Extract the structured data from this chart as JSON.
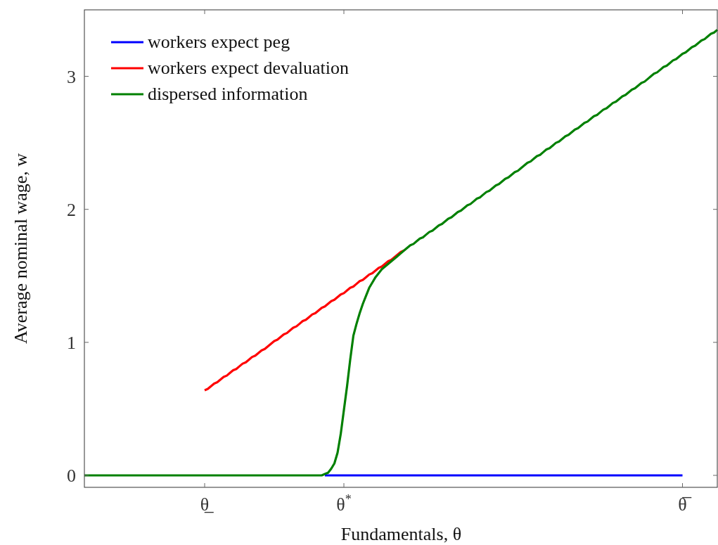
{
  "chart_data": {
    "type": "line",
    "xlabel": "Fundamentals, θ",
    "ylabel": "Average nominal wage, w",
    "ylim": [
      -0.09,
      3.5
    ],
    "categories": [
      null,
      null,
      null,
      null,
      null,
      null,
      null,
      null,
      null,
      null,
      null,
      null,
      null,
      null,
      null,
      null,
      null,
      null,
      null,
      null,
      null,
      null,
      null,
      null,
      null,
      null,
      null,
      null,
      null,
      null,
      null,
      null,
      null,
      null,
      null,
      null,
      null,
      null,
      "θ̲",
      null,
      null,
      null,
      null,
      null,
      null,
      null,
      null,
      null,
      null,
      null,
      null,
      null,
      null,
      null,
      null,
      null,
      null,
      null,
      null,
      null,
      null,
      null,
      null,
      null,
      null,
      null,
      null,
      null,
      null,
      null,
      null,
      null,
      null,
      null,
      null,
      null,
      null,
      null,
      null,
      null,
      null,
      null,
      "θ$^{*}$",
      null,
      null,
      null,
      null,
      null,
      null,
      null,
      null,
      null,
      null,
      null,
      null,
      null,
      null,
      null,
      null,
      null,
      null,
      null,
      null,
      null,
      null,
      null,
      null,
      null,
      null,
      null,
      null,
      null,
      null,
      null,
      null,
      null,
      null,
      null,
      null,
      null,
      null,
      null,
      null,
      null,
      null,
      null,
      null,
      null,
      null,
      null,
      null,
      null,
      null,
      null,
      null,
      null,
      null,
      null,
      null,
      null,
      null,
      null,
      null,
      null,
      null,
      null,
      null,
      null,
      null,
      null,
      null,
      null,
      null,
      null,
      null,
      null,
      null,
      null,
      null,
      null,
      null,
      null,
      null,
      null,
      null,
      null,
      null,
      null,
      null,
      null,
      null,
      null,
      null,
      null,
      null,
      null,
      null,
      null,
      null,
      null,
      null,
      null,
      null,
      null,
      null,
      null,
      null,
      null,
      null,
      "θ̅",
      null,
      null,
      null,
      null,
      null,
      null,
      null,
      null,
      null,
      null,
      null
    ],
    "yticks": [
      0,
      1,
      2,
      3
    ],
    "grid": false,
    "legend": "top left",
    "line_style": "solid",
    "marker": "none",
    "series": [
      {
        "name": "workers expect peg",
        "color": "#0000ff",
        "values": [
          null,
          null,
          null,
          null,
          null,
          null,
          null,
          null,
          null,
          null,
          null,
          null,
          null,
          null,
          null,
          null,
          null,
          null,
          null,
          null,
          null,
          null,
          null,
          null,
          null,
          null,
          null,
          null,
          null,
          null,
          null,
          null,
          null,
          null,
          null,
          null,
          null,
          null,
          null,
          null,
          null,
          null,
          null,
          null,
          null,
          null,
          null,
          null,
          null,
          null,
          null,
          null,
          null,
          null,
          null,
          null,
          null,
          null,
          null,
          null,
          null,
          null,
          null,
          null,
          null,
          null,
          null,
          null,
          null,
          null,
          null,
          null,
          null,
          null,
          null,
          null,
          0,
          0,
          0,
          0,
          0,
          0,
          0,
          0,
          0,
          0,
          0,
          0,
          0,
          0,
          0,
          0,
          0,
          0,
          0,
          0,
          0,
          0,
          0,
          0,
          0,
          0,
          0,
          0,
          0,
          0,
          0,
          0,
          0,
          0,
          0,
          0,
          0,
          0,
          0,
          0,
          0,
          0,
          0,
          0,
          0,
          0,
          0,
          0,
          0,
          0,
          0,
          0,
          0,
          0,
          0,
          0,
          0,
          0,
          0,
          0,
          0,
          0,
          0,
          0,
          0,
          0,
          0,
          0,
          0,
          0,
          0,
          0,
          0,
          0,
          0,
          0,
          0,
          0,
          0,
          0,
          0,
          0,
          0,
          0,
          0,
          0,
          0,
          0,
          0,
          0,
          0,
          0,
          0,
          0,
          0,
          0,
          0,
          0,
          0,
          0,
          0,
          0,
          0,
          0,
          0,
          0,
          0,
          0,
          0,
          0,
          0,
          0,
          0,
          0,
          null,
          null,
          null,
          null,
          null,
          null,
          null,
          null,
          null,
          null,
          null
        ]
      },
      {
        "name": "workers expect devaluation",
        "color": "#ff0000",
        "values": [
          null,
          null,
          null,
          null,
          null,
          null,
          null,
          null,
          null,
          null,
          null,
          null,
          null,
          null,
          null,
          null,
          null,
          null,
          null,
          null,
          null,
          null,
          null,
          null,
          null,
          null,
          null,
          null,
          null,
          null,
          null,
          null,
          null,
          null,
          null,
          null,
          null,
          null,
          0.64,
          0.65,
          0.67,
          0.69,
          0.7,
          0.72,
          0.74,
          0.75,
          0.77,
          0.79,
          0.8,
          0.82,
          0.84,
          0.85,
          0.87,
          0.89,
          0.9,
          0.92,
          0.94,
          0.95,
          0.97,
          0.99,
          1.01,
          1.02,
          1.04,
          1.06,
          1.07,
          1.09,
          1.11,
          1.12,
          1.14,
          1.16,
          1.17,
          1.19,
          1.21,
          1.22,
          1.24,
          1.26,
          1.27,
          1.29,
          1.31,
          1.32,
          1.34,
          1.36,
          1.37,
          1.39,
          1.41,
          1.42,
          1.44,
          1.46,
          1.47,
          1.49,
          1.51,
          1.52,
          1.54,
          1.56,
          1.57,
          1.59,
          1.61,
          1.62,
          1.64,
          1.66,
          1.68,
          1.69,
          null,
          null,
          null,
          null,
          null,
          null,
          null,
          null,
          null,
          null,
          null,
          null,
          null,
          null,
          null,
          null,
          null,
          null,
          null,
          null,
          null,
          null,
          null,
          null,
          null,
          null,
          null,
          null,
          null,
          null,
          null,
          null,
          null,
          null,
          null,
          null,
          null,
          null,
          null,
          null,
          null,
          null,
          null,
          null,
          null,
          null,
          null,
          null,
          null,
          null,
          null,
          null,
          null,
          null,
          null,
          null,
          null,
          null,
          null,
          null,
          null,
          null,
          null,
          null,
          null,
          null,
          null,
          null,
          null,
          null,
          null,
          null,
          null,
          null,
          null,
          null,
          null,
          null,
          null,
          null,
          null,
          null,
          null,
          null,
          null,
          null,
          null,
          null,
          null,
          null,
          null,
          null,
          null,
          null,
          null,
          null,
          null,
          null,
          null
        ]
      },
      {
        "name": "dispersed information",
        "color": "#008000",
        "values": [
          0,
          0,
          0,
          0,
          0,
          0,
          0,
          0,
          0,
          0,
          0,
          0,
          0,
          0,
          0,
          0,
          0,
          0,
          0,
          0,
          0,
          0,
          0,
          0,
          0,
          0,
          0,
          0,
          0,
          0,
          0,
          0,
          0,
          0,
          0,
          0,
          0,
          0,
          0,
          0,
          0,
          0,
          0,
          0,
          0,
          0,
          0,
          0,
          0,
          0,
          0,
          0,
          0,
          0,
          0,
          0,
          0,
          0,
          0,
          0,
          0,
          0,
          0,
          0,
          0,
          0,
          0,
          0,
          0,
          0,
          0,
          0,
          0,
          0,
          0,
          0,
          0.01,
          0.02,
          0.05,
          0.09,
          0.17,
          0.31,
          0.49,
          0.67,
          0.87,
          1.05,
          1.14,
          1.22,
          1.29,
          1.35,
          1.41,
          1.45,
          1.49,
          1.52,
          1.55,
          1.57,
          1.59,
          1.61,
          1.63,
          1.65,
          1.67,
          1.69,
          1.71,
          1.73,
          1.74,
          1.76,
          1.78,
          1.79,
          1.81,
          1.83,
          1.84,
          1.86,
          1.88,
          1.89,
          1.91,
          1.93,
          1.94,
          1.96,
          1.98,
          1.99,
          2.01,
          2.03,
          2.04,
          2.06,
          2.08,
          2.09,
          2.11,
          2.13,
          2.14,
          2.16,
          2.18,
          2.19,
          2.21,
          2.23,
          2.24,
          2.26,
          2.28,
          2.29,
          2.31,
          2.33,
          2.35,
          2.36,
          2.38,
          2.4,
          2.41,
          2.43,
          2.45,
          2.46,
          2.48,
          2.5,
          2.51,
          2.53,
          2.55,
          2.56,
          2.58,
          2.6,
          2.61,
          2.63,
          2.65,
          2.66,
          2.68,
          2.7,
          2.71,
          2.73,
          2.75,
          2.76,
          2.78,
          2.8,
          2.81,
          2.83,
          2.85,
          2.86,
          2.88,
          2.9,
          2.91,
          2.93,
          2.95,
          2.96,
          2.98,
          3.0,
          3.02,
          3.03,
          3.05,
          3.07,
          3.08,
          3.1,
          3.12,
          3.13,
          3.15,
          3.17,
          3.18,
          3.2,
          3.22,
          3.23,
          3.25,
          3.27,
          3.28,
          3.3,
          3.32,
          3.33,
          3.35
        ]
      }
    ]
  }
}
